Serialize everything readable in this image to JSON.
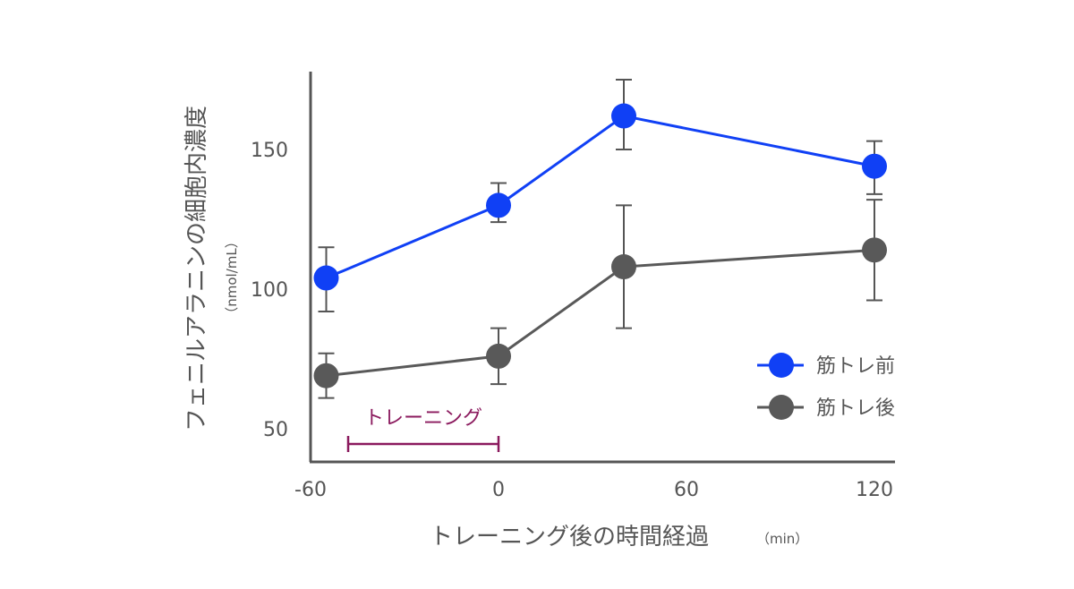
{
  "chart_data": {
    "type": "line",
    "xlabel": "トレーニング後の時間経過",
    "xlabel_unit": "（min）",
    "ylabel": "フェニルアラニンの細胞内濃度",
    "ylabel_unit": "（nmol/mL）",
    "x_ticks": [
      -60,
      0,
      60,
      120
    ],
    "y_ticks": [
      50,
      100,
      150
    ],
    "xlim": [
      -60,
      120
    ],
    "ylim": [
      40,
      178
    ],
    "grid": false,
    "legend_position": "right",
    "series": [
      {
        "name": "筋トレ前",
        "color": "#1040f5",
        "points": [
          {
            "x": -55,
            "y": 104,
            "err_low": 92,
            "err_high": 115
          },
          {
            "x": 0,
            "y": 130,
            "err_low": 124,
            "err_high": 138
          },
          {
            "x": 40,
            "y": 162,
            "err_low": 150,
            "err_high": 175
          },
          {
            "x": 120,
            "y": 144,
            "err_low": 134,
            "err_high": 153
          }
        ]
      },
      {
        "name": "筋トレ後",
        "color": "#595959",
        "points": [
          {
            "x": -55,
            "y": 69,
            "err_low": 61,
            "err_high": 77
          },
          {
            "x": 0,
            "y": 76,
            "err_low": 66,
            "err_high": 86
          },
          {
            "x": 40,
            "y": 108,
            "err_low": 86,
            "err_high": 130
          },
          {
            "x": 120,
            "y": 114,
            "err_low": 96,
            "err_high": 132
          }
        ]
      }
    ],
    "annotation": {
      "label": "トレーニング",
      "x_start": -48,
      "x_end": 0,
      "y": 55,
      "color": "#8b1a5e"
    }
  }
}
